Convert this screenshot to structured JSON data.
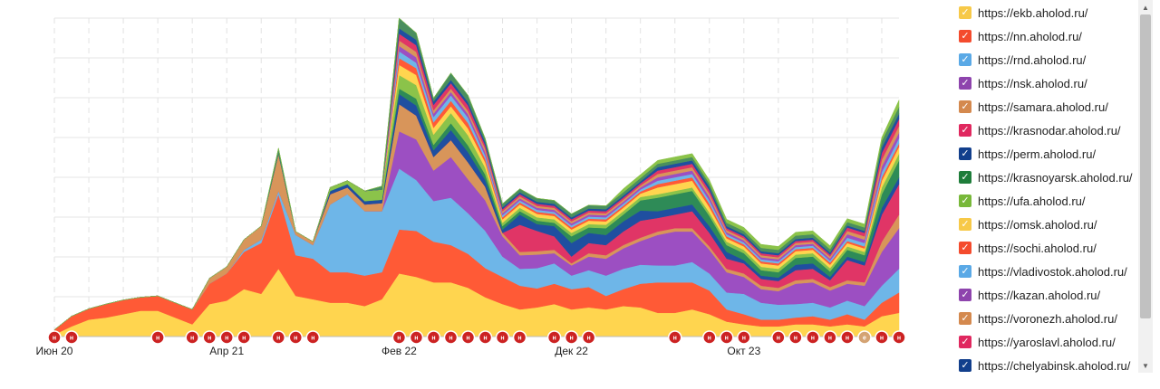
{
  "chart_data": {
    "type": "area",
    "stacked": true,
    "title": "",
    "xlabel": "",
    "ylabel": "",
    "grid": true,
    "legend_position": "right",
    "x_tick_labels": [
      "Июн 20",
      "Апр 21",
      "Фев 22",
      "Дек 22",
      "Окт 23"
    ],
    "x": [
      "2020-06",
      "2020-07",
      "2020-08",
      "2020-09",
      "2020-10",
      "2020-11",
      "2020-12",
      "2021-01",
      "2021-02",
      "2021-03",
      "2021-04",
      "2021-05",
      "2021-06",
      "2021-07",
      "2021-08",
      "2021-09",
      "2021-10",
      "2021-11",
      "2021-12",
      "2022-01",
      "2022-02",
      "2022-03",
      "2022-04",
      "2022-05",
      "2022-06",
      "2022-07",
      "2022-08",
      "2022-09",
      "2022-10",
      "2022-11",
      "2022-12",
      "2023-01",
      "2023-02",
      "2023-03",
      "2023-04",
      "2023-05",
      "2023-06",
      "2023-07",
      "2023-08",
      "2023-09",
      "2023-10",
      "2023-11",
      "2023-12",
      "2024-01",
      "2024-02",
      "2024-03",
      "2024-04",
      "2024-05",
      "2024-06",
      "2024-07"
    ],
    "series": [
      {
        "name": "https://ekb.aholod.ru/",
        "color": "#ffd54f",
        "values": [
          3,
          15,
          25,
          28,
          33,
          38,
          38,
          28,
          18,
          48,
          53,
          70,
          63,
          100,
          60,
          55,
          50,
          50,
          45,
          55,
          93,
          88,
          80,
          80,
          72,
          58,
          48,
          40,
          43,
          48,
          40,
          43,
          40,
          45,
          43,
          35,
          35,
          40,
          33,
          22,
          18,
          15,
          15,
          18,
          18,
          15,
          18,
          15,
          30,
          35
        ]
      },
      {
        "name": "https://nn.aholod.ru/",
        "color": "#ff5a36",
        "values": [
          7,
          15,
          16,
          20,
          21,
          20,
          22,
          22,
          22,
          30,
          40,
          55,
          75,
          110,
          60,
          60,
          45,
          45,
          45,
          40,
          65,
          68,
          60,
          55,
          50,
          43,
          40,
          35,
          28,
          30,
          30,
          30,
          20,
          25,
          35,
          45,
          45,
          40,
          35,
          18,
          15,
          10,
          10,
          10,
          12,
          10,
          15,
          10,
          20,
          30
        ]
      },
      {
        "name": "https://rnd.aholod.ru/",
        "color": "#6eb6e8",
        "values": [
          0,
          0,
          0,
          0,
          0,
          0,
          0,
          0,
          0,
          0,
          0,
          3,
          5,
          5,
          30,
          20,
          100,
          115,
          95,
          90,
          90,
          75,
          60,
          70,
          60,
          55,
          30,
          25,
          30,
          30,
          20,
          25,
          30,
          30,
          28,
          25,
          25,
          30,
          25,
          25,
          30,
          25,
          22,
          20,
          20,
          18,
          20,
          20,
          25,
          35
        ]
      },
      {
        "name": "https://nsk.aholod.ru/",
        "color": "#9c4fc2",
        "values": [
          0,
          0,
          0,
          0,
          0,
          0,
          0,
          0,
          0,
          0,
          0,
          0,
          0,
          0,
          0,
          0,
          0,
          0,
          0,
          0,
          55,
          60,
          45,
          60,
          50,
          45,
          30,
          20,
          20,
          15,
          15,
          20,
          25,
          30,
          35,
          45,
          50,
          45,
          35,
          30,
          25,
          20,
          20,
          30,
          30,
          25,
          25,
          30,
          50,
          60
        ]
      },
      {
        "name": "https://samara.aholod.ru/",
        "color": "#d8955a",
        "values": [
          0,
          0,
          0,
          0,
          0,
          0,
          0,
          0,
          0,
          8,
          10,
          15,
          20,
          55,
          5,
          5,
          15,
          10,
          10,
          12,
          40,
          35,
          20,
          25,
          25,
          20,
          5,
          5,
          5,
          5,
          3,
          5,
          5,
          5,
          5,
          5,
          5,
          5,
          5,
          5,
          5,
          5,
          5,
          5,
          5,
          5,
          5,
          5,
          15,
          20
        ]
      },
      {
        "name": "https://krasnodar.aholod.ru/",
        "color": "#e03566",
        "values": [
          0,
          0,
          0,
          0,
          0,
          0,
          0,
          0,
          0,
          0,
          0,
          0,
          0,
          0,
          0,
          0,
          0,
          0,
          0,
          0,
          0,
          0,
          0,
          0,
          0,
          0,
          0,
          40,
          30,
          20,
          10,
          15,
          15,
          20,
          25,
          20,
          20,
          25,
          20,
          15,
          15,
          10,
          10,
          15,
          15,
          10,
          30,
          25,
          40,
          45
        ]
      },
      {
        "name": "https://perm.aholod.ru/",
        "color": "#1f4fa0",
        "values": [
          0,
          0,
          0,
          0,
          0,
          0,
          0,
          0,
          0,
          0,
          0,
          0,
          0,
          0,
          0,
          0,
          5,
          5,
          5,
          5,
          15,
          15,
          10,
          15,
          15,
          10,
          5,
          15,
          10,
          15,
          20,
          15,
          15,
          15,
          15,
          10,
          10,
          10,
          10,
          10,
          5,
          5,
          5,
          8,
          8,
          5,
          5,
          5,
          10,
          10
        ]
      },
      {
        "name": "https://krasnoyarsk.aholod.ru/",
        "color": "#2e8b57",
        "values": [
          0,
          0,
          0,
          0,
          0,
          0,
          0,
          0,
          0,
          0,
          0,
          0,
          0,
          0,
          0,
          0,
          0,
          0,
          0,
          0,
          8,
          10,
          8,
          10,
          10,
          8,
          5,
          5,
          5,
          5,
          10,
          8,
          10,
          10,
          15,
          20,
          20,
          20,
          15,
          10,
          10,
          8,
          8,
          10,
          10,
          8,
          10,
          10,
          20,
          25
        ]
      },
      {
        "name": "https://ufa.aholod.ru/",
        "color": "#8bc34a",
        "values": [
          0,
          0,
          0,
          0,
          0,
          0,
          0,
          0,
          0,
          0,
          0,
          0,
          0,
          0,
          0,
          0,
          5,
          5,
          15,
          15,
          20,
          20,
          15,
          15,
          15,
          10,
          5,
          5,
          5,
          5,
          5,
          5,
          5,
          5,
          5,
          5,
          5,
          5,
          5,
          5,
          5,
          5,
          5,
          5,
          5,
          5,
          5,
          5,
          10,
          10
        ]
      },
      {
        "name": "https://omsk.aholod.ru/",
        "color": "#ffd54f",
        "values": [
          0,
          0,
          0,
          0,
          0,
          0,
          0,
          0,
          0,
          0,
          0,
          0,
          0,
          0,
          0,
          0,
          0,
          0,
          0,
          0,
          15,
          15,
          10,
          10,
          10,
          8,
          5,
          5,
          5,
          5,
          5,
          5,
          5,
          5,
          5,
          10,
          10,
          10,
          8,
          5,
          5,
          5,
          5,
          5,
          5,
          5,
          5,
          5,
          10,
          10
        ]
      },
      {
        "name": "https://sochi.aholod.ru/",
        "color": "#ff5a36",
        "values": [
          0,
          0,
          0,
          0,
          0,
          0,
          0,
          0,
          0,
          0,
          0,
          0,
          0,
          0,
          0,
          0,
          0,
          0,
          0,
          0,
          10,
          10,
          8,
          8,
          8,
          5,
          3,
          3,
          3,
          3,
          3,
          3,
          3,
          3,
          3,
          5,
          5,
          5,
          5,
          3,
          3,
          3,
          3,
          3,
          3,
          3,
          3,
          3,
          5,
          5
        ]
      },
      {
        "name": "https://vladivostok.aholod.ru/",
        "color": "#6eb6e8",
        "values": [
          0,
          0,
          0,
          0,
          0,
          0,
          0,
          0,
          0,
          0,
          0,
          0,
          0,
          0,
          0,
          0,
          0,
          0,
          0,
          0,
          10,
          8,
          8,
          8,
          8,
          5,
          3,
          3,
          3,
          3,
          3,
          3,
          3,
          3,
          3,
          5,
          5,
          5,
          5,
          3,
          3,
          3,
          3,
          3,
          3,
          3,
          5,
          5,
          8,
          8
        ]
      },
      {
        "name": "https://kazan.aholod.ru/",
        "color": "#9c4fc2",
        "values": [
          0,
          0,
          0,
          0,
          0,
          0,
          0,
          0,
          0,
          0,
          0,
          0,
          0,
          0,
          0,
          0,
          0,
          0,
          0,
          0,
          8,
          8,
          5,
          5,
          5,
          5,
          3,
          3,
          3,
          3,
          3,
          3,
          3,
          3,
          3,
          5,
          5,
          5,
          5,
          3,
          3,
          3,
          3,
          3,
          3,
          3,
          5,
          5,
          8,
          8
        ]
      },
      {
        "name": "https://voronezh.aholod.ru/",
        "color": "#d8955a",
        "values": [
          0,
          0,
          0,
          0,
          0,
          0,
          0,
          0,
          0,
          0,
          0,
          0,
          0,
          0,
          0,
          0,
          0,
          0,
          0,
          0,
          8,
          8,
          5,
          5,
          5,
          5,
          3,
          3,
          3,
          3,
          3,
          3,
          3,
          3,
          3,
          5,
          5,
          5,
          5,
          3,
          3,
          3,
          3,
          3,
          3,
          3,
          5,
          5,
          10,
          10
        ]
      },
      {
        "name": "https://yaroslavl.aholod.ru/",
        "color": "#e03566",
        "values": [
          0,
          0,
          0,
          0,
          0,
          0,
          0,
          0,
          0,
          0,
          0,
          0,
          0,
          0,
          0,
          0,
          0,
          0,
          0,
          0,
          10,
          10,
          8,
          8,
          8,
          5,
          3,
          3,
          3,
          3,
          3,
          3,
          3,
          3,
          3,
          5,
          5,
          5,
          5,
          3,
          3,
          3,
          3,
          3,
          3,
          3,
          5,
          5,
          10,
          10
        ]
      },
      {
        "name": "https://chelyabinsk.aholod.ru/",
        "color": "#1f4fa0",
        "values": [
          0,
          0,
          0,
          0,
          0,
          0,
          0,
          0,
          0,
          0,
          0,
          0,
          0,
          0,
          0,
          0,
          0,
          0,
          0,
          0,
          8,
          8,
          5,
          5,
          5,
          5,
          3,
          3,
          3,
          3,
          3,
          3,
          3,
          3,
          3,
          5,
          5,
          5,
          5,
          3,
          3,
          3,
          3,
          3,
          3,
          3,
          3,
          3,
          8,
          8
        ]
      },
      {
        "name": "",
        "color": "#4a8f5e",
        "values": [
          0,
          0,
          0,
          0,
          0,
          0,
          0,
          0,
          0,
          0,
          0,
          0,
          0,
          8,
          0,
          0,
          0,
          0,
          0,
          5,
          15,
          10,
          5,
          10,
          10,
          5,
          5,
          5,
          5,
          5,
          5,
          5,
          5,
          5,
          5,
          5,
          5,
          5,
          5,
          5,
          5,
          5,
          5,
          5,
          5,
          5,
          5,
          5,
          10,
          10
        ]
      },
      {
        "name": "",
        "color": "#8bc34a",
        "values": [
          0,
          0,
          0,
          0,
          0,
          0,
          0,
          0,
          0,
          0,
          0,
          0,
          0,
          0,
          0,
          0,
          0,
          0,
          0,
          0,
          0,
          0,
          0,
          0,
          0,
          0,
          0,
          0,
          0,
          0,
          0,
          0,
          0,
          5,
          5,
          5,
          5,
          5,
          5,
          5,
          5,
          5,
          5,
          5,
          5,
          5,
          5,
          5,
          5,
          10
        ]
      }
    ],
    "markers": [
      {
        "index": 0,
        "label": "н",
        "color": "#cc2222"
      },
      {
        "index": 1,
        "label": "н",
        "color": "#cc2222"
      },
      {
        "index": 6,
        "label": "н",
        "color": "#cc2222"
      },
      {
        "index": 8,
        "label": "н",
        "color": "#cc2222"
      },
      {
        "index": 9,
        "label": "н",
        "color": "#cc2222"
      },
      {
        "index": 10,
        "label": "н",
        "color": "#cc2222"
      },
      {
        "index": 11,
        "label": "н",
        "color": "#cc2222"
      },
      {
        "index": 13,
        "label": "н",
        "color": "#cc2222"
      },
      {
        "index": 14,
        "label": "н",
        "color": "#cc2222"
      },
      {
        "index": 15,
        "label": "н",
        "color": "#cc2222"
      },
      {
        "index": 20,
        "label": "н",
        "color": "#cc2222"
      },
      {
        "index": 21,
        "label": "н",
        "color": "#cc2222"
      },
      {
        "index": 22,
        "label": "н",
        "color": "#cc2222"
      },
      {
        "index": 23,
        "label": "н",
        "color": "#cc2222"
      },
      {
        "index": 24,
        "label": "н",
        "color": "#cc2222"
      },
      {
        "index": 25,
        "label": "н",
        "color": "#cc2222"
      },
      {
        "index": 26,
        "label": "н",
        "color": "#cc2222"
      },
      {
        "index": 27,
        "label": "н",
        "color": "#cc2222"
      },
      {
        "index": 29,
        "label": "н",
        "color": "#cc2222"
      },
      {
        "index": 30,
        "label": "н",
        "color": "#cc2222"
      },
      {
        "index": 31,
        "label": "н",
        "color": "#cc2222"
      },
      {
        "index": 36,
        "label": "н",
        "color": "#cc2222"
      },
      {
        "index": 38,
        "label": "н",
        "color": "#cc2222"
      },
      {
        "index": 39,
        "label": "н",
        "color": "#cc2222"
      },
      {
        "index": 40,
        "label": "н",
        "color": "#cc2222"
      },
      {
        "index": 42,
        "label": "н",
        "color": "#cc2222"
      },
      {
        "index": 43,
        "label": "н",
        "color": "#cc2222"
      },
      {
        "index": 44,
        "label": "н",
        "color": "#cc2222"
      },
      {
        "index": 45,
        "label": "н",
        "color": "#cc2222"
      },
      {
        "index": 46,
        "label": "н",
        "color": "#cc2222"
      },
      {
        "index": 47,
        "label": "е",
        "color": "#d4a373"
      },
      {
        "index": 48,
        "label": "н",
        "color": "#cc2222"
      },
      {
        "index": 49,
        "label": "н",
        "color": "#cc2222"
      }
    ]
  },
  "legend": {
    "items": [
      {
        "label": "https://ekb.aholod.ru/",
        "color": "#f7c948"
      },
      {
        "label": "https://nn.aholod.ru/",
        "color": "#f44b2d"
      },
      {
        "label": "https://rnd.aholod.ru/",
        "color": "#5aa9e6"
      },
      {
        "label": "https://nsk.aholod.ru/",
        "color": "#8e44ad"
      },
      {
        "label": "https://samara.aholod.ru/",
        "color": "#d4894e"
      },
      {
        "label": "https://krasnodar.aholod.ru/",
        "color": "#e0285f"
      },
      {
        "label": "https://perm.aholod.ru/",
        "color": "#123f8c"
      },
      {
        "label": "https://krasnoyarsk.aholod.ru/",
        "color": "#1e7d3a"
      },
      {
        "label": "https://ufa.aholod.ru/",
        "color": "#78b83a"
      },
      {
        "label": "https://omsk.aholod.ru/",
        "color": "#f7c948"
      },
      {
        "label": "https://sochi.aholod.ru/",
        "color": "#f44b2d"
      },
      {
        "label": "https://vladivostok.aholod.ru/",
        "color": "#5aa9e6"
      },
      {
        "label": "https://kazan.aholod.ru/",
        "color": "#8e44ad"
      },
      {
        "label": "https://voronezh.aholod.ru/",
        "color": "#d4894e"
      },
      {
        "label": "https://yaroslavl.aholod.ru/",
        "color": "#e0285f"
      },
      {
        "label": "https://chelyabinsk.aholod.ru/",
        "color": "#123f8c"
      }
    ]
  },
  "icons": {
    "checkbox": "check-icon",
    "scroll_up": "arrow-up-icon",
    "scroll_down": "arrow-down-icon"
  }
}
